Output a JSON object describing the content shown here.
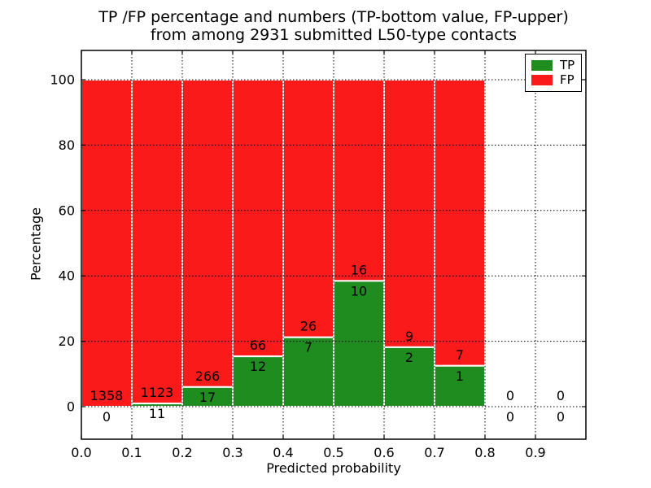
{
  "figure": {
    "title_line1": "TP /FP percentage and numbers (TP-bottom value, FP-upper)",
    "title_line2": "from among 2931 submitted L50-type contacts"
  },
  "legend": {
    "position": "upper right",
    "items": [
      {
        "label": "TP",
        "color": "#1e8c1e"
      },
      {
        "label": "FP",
        "color": "#fa1a1a"
      }
    ]
  },
  "chart_data": {
    "type": "bar",
    "stacked": true,
    "title": "TP /FP percentage and numbers (TP-bottom value, FP-upper) from among 2931 submitted L50-type contacts",
    "xlabel": "Predicted probability",
    "ylabel": "Percentage",
    "total_contacts": 2931,
    "x_ticks": [
      "0.0",
      "0.1",
      "0.2",
      "0.3",
      "0.4",
      "0.5",
      "0.6",
      "0.7",
      "0.8",
      "0.9"
    ],
    "y_ticks": [
      0,
      20,
      40,
      60,
      80,
      100
    ],
    "xlim": [
      0.0,
      1.0
    ],
    "ylim": [
      -10,
      110
    ],
    "grid": true,
    "legend_position": "upper right",
    "bin_width": 0.1,
    "series": [
      {
        "name": "TP",
        "color": "#1e8c1e",
        "position": "bottom"
      },
      {
        "name": "FP",
        "color": "#fa1a1a",
        "position": "upper"
      }
    ],
    "bins": [
      {
        "x_start": 0.0,
        "x_end": 0.1,
        "tp_count": 0,
        "fp_count": 1358,
        "tp_pct": 0.0
      },
      {
        "x_start": 0.1,
        "x_end": 0.2,
        "tp_count": 11,
        "fp_count": 1123,
        "tp_pct": 0.97
      },
      {
        "x_start": 0.2,
        "x_end": 0.3,
        "tp_count": 17,
        "fp_count": 266,
        "tp_pct": 6.01
      },
      {
        "x_start": 0.3,
        "x_end": 0.4,
        "tp_count": 12,
        "fp_count": 66,
        "tp_pct": 15.38
      },
      {
        "x_start": 0.4,
        "x_end": 0.5,
        "tp_count": 7,
        "fp_count": 26,
        "tp_pct": 21.21
      },
      {
        "x_start": 0.5,
        "x_end": 0.6,
        "tp_count": 10,
        "fp_count": 16,
        "tp_pct": 38.46
      },
      {
        "x_start": 0.6,
        "x_end": 0.7,
        "tp_count": 2,
        "fp_count": 9,
        "tp_pct": 18.18
      },
      {
        "x_start": 0.7,
        "x_end": 0.8,
        "tp_count": 1,
        "fp_count": 7,
        "tp_pct": 12.5
      },
      {
        "x_start": 0.8,
        "x_end": 0.9,
        "tp_count": 0,
        "fp_count": 0,
        "tp_pct": 0.0
      },
      {
        "x_start": 0.9,
        "x_end": 1.0,
        "tp_count": 0,
        "fp_count": 0,
        "tp_pct": 0.0
      }
    ]
  }
}
